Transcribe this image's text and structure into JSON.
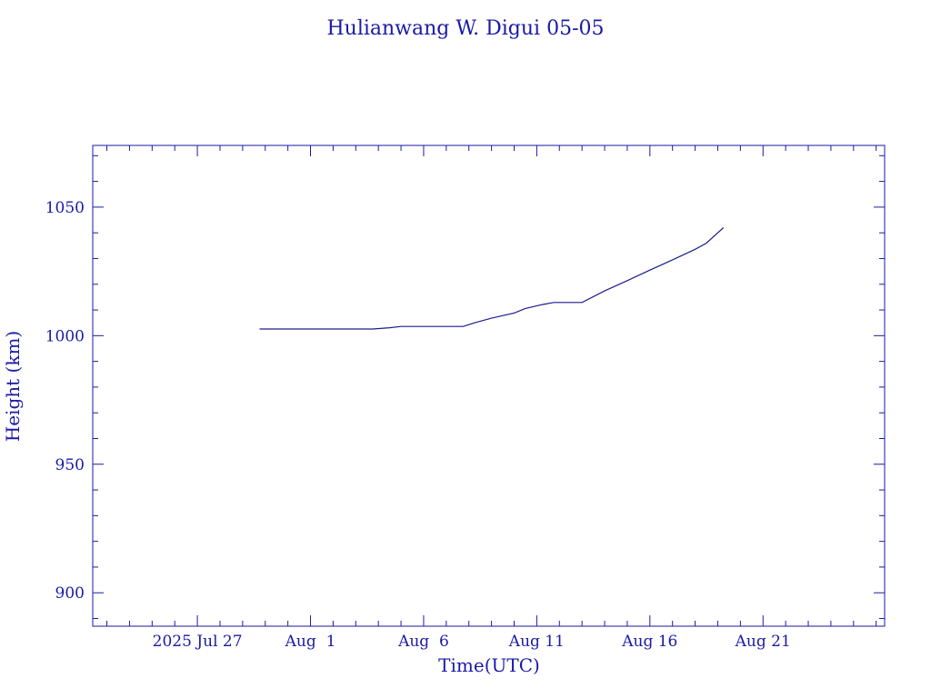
{
  "colors": {
    "ink": "#1a1aa6",
    "line": "#1c1c8f",
    "background": "#ffffff"
  },
  "chart_data": {
    "type": "line",
    "title": "Hulianwang W. Digui 05-05",
    "xlabel": "Time(UTC)",
    "ylabel": "Height (km)",
    "xlim": [
      "2025-07-22T09:00",
      "2025-08-26T09:00"
    ],
    "ylim": [
      887,
      1074
    ],
    "grid": false,
    "x_ticks": [
      {
        "date": "2025-07-27",
        "label": "2025 Jul 27"
      },
      {
        "date": "2025-08-01",
        "label": "Aug  1"
      },
      {
        "date": "2025-08-06",
        "label": "Aug  6"
      },
      {
        "date": "2025-08-11",
        "label": "Aug 11"
      },
      {
        "date": "2025-08-16",
        "label": "Aug 16"
      },
      {
        "date": "2025-08-21",
        "label": "Aug 21"
      }
    ],
    "y_ticks": [
      900,
      950,
      1000,
      1050
    ],
    "series": [
      {
        "x": [
          "2025-07-29T18:00",
          "2025-08-01T00:00",
          "2025-08-03T18:00",
          "2025-08-04T12:00",
          "2025-08-05T00:00",
          "2025-08-06T00:00",
          "2025-08-07T00:00",
          "2025-08-07T18:00",
          "2025-08-08T06:00",
          "2025-08-09T00:00",
          "2025-08-10T00:00",
          "2025-08-10T12:00",
          "2025-08-11T06:00",
          "2025-08-11T18:00",
          "2025-08-12T12:00",
          "2025-08-13T00:00",
          "2025-08-14T00:00",
          "2025-08-15T00:00",
          "2025-08-16T00:00",
          "2025-08-17T00:00",
          "2025-08-18T00:00",
          "2025-08-18T12:00",
          "2025-08-19T06:00"
        ],
        "y": [
          1002.6,
          1002.6,
          1002.6,
          1003.1,
          1003.6,
          1003.6,
          1003.6,
          1003.6,
          1005.0,
          1006.8,
          1008.8,
          1010.6,
          1012.1,
          1012.9,
          1012.9,
          1012.9,
          1017.4,
          1021.4,
          1025.5,
          1029.5,
          1033.6,
          1036.0,
          1042.0
        ]
      }
    ]
  }
}
